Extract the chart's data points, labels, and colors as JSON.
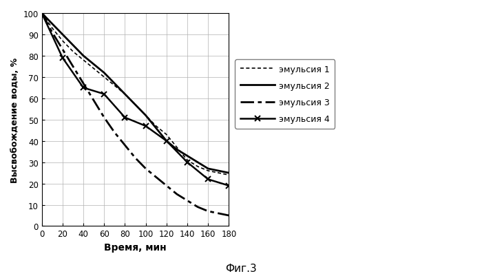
{
  "title": "Фиг.3",
  "xlabel": "Время, мин",
  "ylabel": "Высвобождение воды, %",
  "xlim": [
    0,
    180
  ],
  "ylim": [
    0,
    100
  ],
  "xticks": [
    0,
    20,
    40,
    60,
    80,
    100,
    120,
    140,
    160,
    180
  ],
  "yticks": [
    0,
    10,
    20,
    30,
    40,
    50,
    60,
    70,
    80,
    90,
    100
  ],
  "emulsion1": {
    "label": "эмульсия 1",
    "x": [
      0,
      10,
      20,
      30,
      40,
      50,
      60,
      70,
      80,
      90,
      100,
      110,
      120,
      130,
      140,
      150,
      160,
      170,
      180
    ],
    "y": [
      100,
      93,
      87,
      82,
      78,
      74,
      70,
      66,
      62,
      57,
      52,
      47,
      43,
      37,
      31,
      28,
      26,
      25,
      24
    ],
    "color": "#000000",
    "linewidth": 1.2
  },
  "emulsion2": {
    "label": "эмульсия 2",
    "x": [
      0,
      10,
      20,
      30,
      40,
      50,
      60,
      70,
      80,
      90,
      100,
      110,
      120,
      130,
      140,
      150,
      160,
      170,
      180
    ],
    "y": [
      100,
      95,
      90,
      85,
      80,
      76,
      72,
      67,
      62,
      57,
      52,
      46,
      40,
      36,
      33,
      30,
      27,
      26,
      25
    ],
    "color": "#000000",
    "linewidth": 2.0
  },
  "emulsion3": {
    "label": "эмульсия 3",
    "x": [
      0,
      10,
      20,
      30,
      40,
      50,
      60,
      70,
      80,
      90,
      100,
      110,
      120,
      130,
      140,
      150,
      160,
      170,
      180
    ],
    "y": [
      100,
      91,
      83,
      75,
      67,
      59,
      51,
      44,
      38,
      32,
      27,
      23,
      19,
      15,
      12,
      9,
      7,
      6,
      5
    ],
    "color": "#000000",
    "linewidth": 2.0
  },
  "emulsion4": {
    "label": "эмульсия 4",
    "x": [
      0,
      20,
      40,
      60,
      80,
      100,
      120,
      140,
      160,
      180
    ],
    "y": [
      100,
      79,
      65,
      62,
      51,
      47,
      40,
      30,
      22,
      19
    ],
    "color": "#000000",
    "linewidth": 1.8
  },
  "background_color": "#ffffff",
  "grid_color": "#b0b0b0"
}
